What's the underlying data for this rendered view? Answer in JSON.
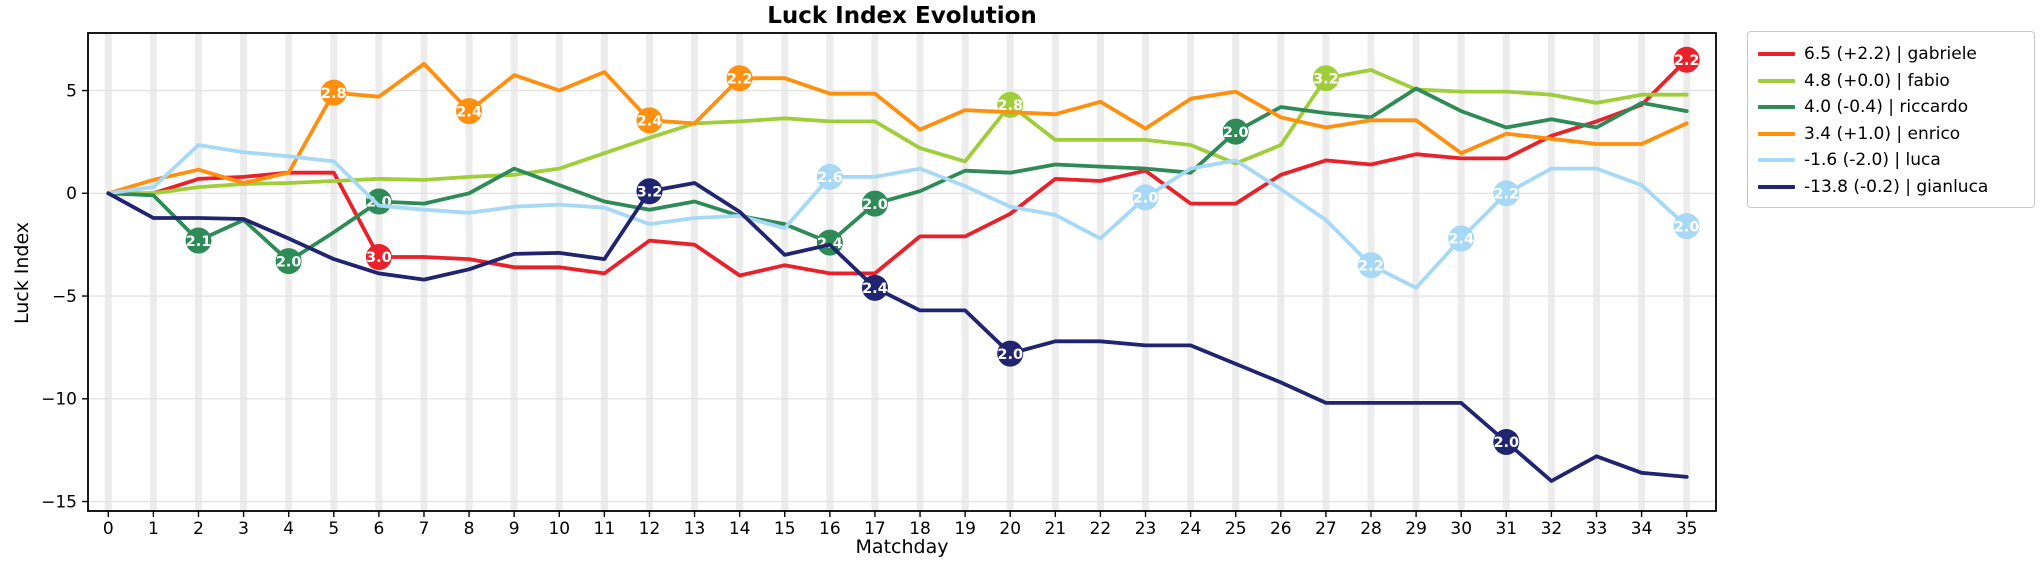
{
  "chart_data": {
    "type": "line",
    "title": "Luck Index Evolution",
    "xlabel": "Matchday",
    "ylabel": "Luck Index",
    "x": [
      0,
      1,
      2,
      3,
      4,
      5,
      6,
      7,
      8,
      9,
      10,
      11,
      12,
      13,
      14,
      15,
      16,
      17,
      18,
      19,
      20,
      21,
      22,
      23,
      24,
      25,
      26,
      27,
      28,
      29,
      30,
      31,
      32,
      33,
      34,
      35
    ],
    "xlim": [
      -0.45,
      35.65
    ],
    "ylim": [
      -15.46,
      7.8
    ],
    "yticks": [
      {
        "v": 5,
        "label": "5"
      },
      {
        "v": 0,
        "label": "0"
      },
      {
        "v": -5,
        "label": "−5"
      },
      {
        "v": -10,
        "label": "−10"
      },
      {
        "v": -15,
        "label": "−15"
      }
    ],
    "grid": {
      "vertical_band_color": "#ececec",
      "horizontal_line_color": "#e4e4e4"
    },
    "legend_position": "outside-right",
    "series": [
      {
        "name": "gabriele",
        "legend_label": "6.5 (+2.2) | gabriele",
        "color": "#e8212a",
        "values": [
          0,
          0,
          0.7,
          0.8,
          1,
          1,
          -3.1,
          -3.1,
          -3.2,
          -3.6,
          -3.6,
          -3.9,
          -2.3,
          -2.5,
          -4,
          -3.5,
          -3.9,
          -3.9,
          -2.1,
          -2.1,
          -1,
          0.7,
          0.6,
          1.1,
          -0.5,
          -0.5,
          0.9,
          1.6,
          1.4,
          1.9,
          1.7,
          1.7,
          2.8,
          3.5,
          4.3,
          6.5
        ],
        "markers": [
          {
            "md": 6,
            "label": "3.0"
          },
          {
            "md": 35,
            "label": "2.2"
          }
        ]
      },
      {
        "name": "fabio",
        "legend_label": "4.8 (+0.0) | fabio",
        "color": "#9fce3a",
        "values": [
          0,
          0,
          0.3,
          0.45,
          0.5,
          0.6,
          0.7,
          0.65,
          0.8,
          0.9,
          1.2,
          1.95,
          2.7,
          3.4,
          3.5,
          3.65,
          3.5,
          3.5,
          2.2,
          1.55,
          4.3,
          2.6,
          2.6,
          2.6,
          2.35,
          1.45,
          2.35,
          5.6,
          6,
          5.05,
          4.95,
          4.95,
          4.8,
          4.4,
          4.8,
          4.8
        ],
        "markers": [
          {
            "md": 20,
            "label": "2.8"
          },
          {
            "md": 27,
            "label": "3.2"
          }
        ]
      },
      {
        "name": "riccardo",
        "legend_label": "4.0 (-0.4) | riccardo",
        "color": "#2e8b57",
        "values": [
          0,
          -0.1,
          -2.3,
          -1.3,
          -3.3,
          -1.9,
          -0.4,
          -0.5,
          0,
          1.2,
          0.4,
          -0.4,
          -0.8,
          -0.4,
          -1.1,
          -1.5,
          -2.4,
          -0.5,
          0.1,
          1.1,
          1,
          1.4,
          1.3,
          1.2,
          1,
          3,
          4.2,
          3.9,
          3.7,
          5.1,
          4,
          3.2,
          3.6,
          3.2,
          4.4,
          4
        ],
        "markers": [
          {
            "md": 2,
            "label": "2.1"
          },
          {
            "md": 4,
            "label": "2.0"
          },
          {
            "md": 6,
            "label": "2.0"
          },
          {
            "md": 16,
            "label": "2.4"
          },
          {
            "md": 17,
            "label": "2.0"
          },
          {
            "md": 25,
            "label": "2.0"
          }
        ]
      },
      {
        "name": "enrico",
        "legend_label": "3.4 (+1.0) | enrico",
        "color": "#ff8f0e",
        "values": [
          0,
          0.65,
          1.15,
          0.5,
          1,
          4.9,
          4.7,
          6.3,
          4,
          5.75,
          5,
          5.9,
          3.55,
          3.4,
          5.6,
          5.6,
          4.85,
          4.85,
          3.1,
          4.05,
          3.95,
          3.85,
          4.45,
          3.15,
          4.6,
          4.95,
          3.7,
          3.2,
          3.55,
          3.55,
          1.95,
          2.9,
          2.65,
          2.4,
          2.4,
          3.4
        ],
        "markers": [
          {
            "md": 5,
            "label": "2.8"
          },
          {
            "md": 8,
            "label": "2.4"
          },
          {
            "md": 12,
            "label": "2.4"
          },
          {
            "md": 14,
            "label": "2.2"
          }
        ]
      },
      {
        "name": "luca",
        "legend_label": "-1.6 (-2.0) | luca",
        "color": "#a7d8f5",
        "values": [
          0,
          0.3,
          2.35,
          2,
          1.8,
          1.55,
          -0.6,
          -0.8,
          -0.95,
          -0.65,
          -0.55,
          -0.7,
          -1.5,
          -1.2,
          -1.1,
          -1.7,
          0.8,
          0.8,
          1.2,
          0.35,
          -0.65,
          -1.05,
          -2.2,
          -0.2,
          1.2,
          1.6,
          0.2,
          -1.3,
          -3.5,
          -4.6,
          -2.2,
          0,
          1.2,
          1.2,
          0.4,
          -1.6
        ],
        "markers": [
          {
            "md": 16,
            "label": "2.6"
          },
          {
            "md": 23,
            "label": "2.0"
          },
          {
            "md": 28,
            "label": "2.2"
          },
          {
            "md": 30,
            "label": "2.4"
          },
          {
            "md": 31,
            "label": "2.2"
          },
          {
            "md": 35,
            "label": "2.0"
          }
        ]
      },
      {
        "name": "gianluca",
        "legend_label": "-13.8 (-0.2) | gianluca",
        "color": "#21246e",
        "values": [
          0,
          -1.2,
          -1.2,
          -1.25,
          -2.2,
          -3.2,
          -3.9,
          -4.2,
          -3.7,
          -2.95,
          -2.9,
          -3.2,
          0.1,
          0.5,
          -0.9,
          -3,
          -2.5,
          -4.6,
          -5.7,
          -5.7,
          -7.8,
          -7.2,
          -7.2,
          -7.4,
          -7.4,
          -8.3,
          -9.2,
          -10.2,
          -10.2,
          -10.2,
          -10.2,
          -12.1,
          -14,
          -12.8,
          -13.6,
          -13.8
        ],
        "markers": [
          {
            "md": 12,
            "label": "3.2"
          },
          {
            "md": 17,
            "label": "2.4"
          },
          {
            "md": 20,
            "label": "2.0"
          },
          {
            "md": 31,
            "label": "2.0"
          }
        ]
      }
    ]
  }
}
